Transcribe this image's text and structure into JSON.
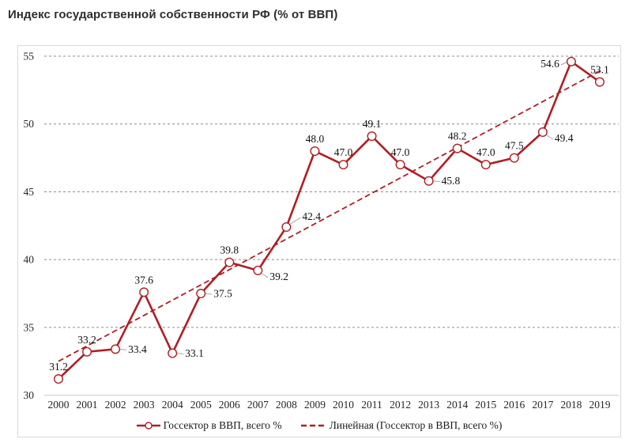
{
  "title": "Индекс государственной собственности РФ (% от ВВП)",
  "chart_data": {
    "type": "line",
    "categories": [
      "2000",
      "2001",
      "2002",
      "2003",
      "2004",
      "2005",
      "2006",
      "2007",
      "2008",
      "2009",
      "2010",
      "2011",
      "2012",
      "2013",
      "2014",
      "2015",
      "2016",
      "2017",
      "2018",
      "2019"
    ],
    "series": [
      {
        "name": "Госсектор в ВВП, всего %",
        "values": [
          31.2,
          33.2,
          33.4,
          37.6,
          33.1,
          37.5,
          39.8,
          39.2,
          42.4,
          48.0,
          47.0,
          49.1,
          47.0,
          45.8,
          48.2,
          47.0,
          47.5,
          49.4,
          54.6,
          53.1
        ],
        "style": "solid-line-circle-markers"
      },
      {
        "name": "Линейная (Госсектор в ВВП, всего %)",
        "type": "linear-trend",
        "style": "dashed-line"
      }
    ],
    "data_labels": [
      "31.2",
      "33.2",
      "33.4",
      "37.6",
      "33.1",
      "37.5",
      "39.8",
      "39.2",
      "42.4",
      "48.0",
      "47.0",
      "49.1",
      "47.0",
      "45.8",
      "48.2",
      "47.0",
      "47.5",
      "49.4",
      "54.6",
      "53.1"
    ],
    "data_label_positions": [
      "above",
      "above",
      "right",
      "above",
      "right",
      "right",
      "above",
      "right-below",
      "right-above",
      "above",
      "above",
      "above",
      "above",
      "right",
      "above",
      "above",
      "above",
      "right-below",
      "left",
      "above"
    ],
    "ylim": [
      30,
      55
    ],
    "yticks": [
      30,
      35,
      40,
      45,
      50,
      55
    ],
    "grid": "horizontal-dashed",
    "legend_position": "bottom",
    "colors": {
      "series": "#b01e24",
      "grid": "#8c8c8c",
      "axis": "#d9d9d9",
      "text": "#262626",
      "leader": "#a6a6a6"
    }
  }
}
